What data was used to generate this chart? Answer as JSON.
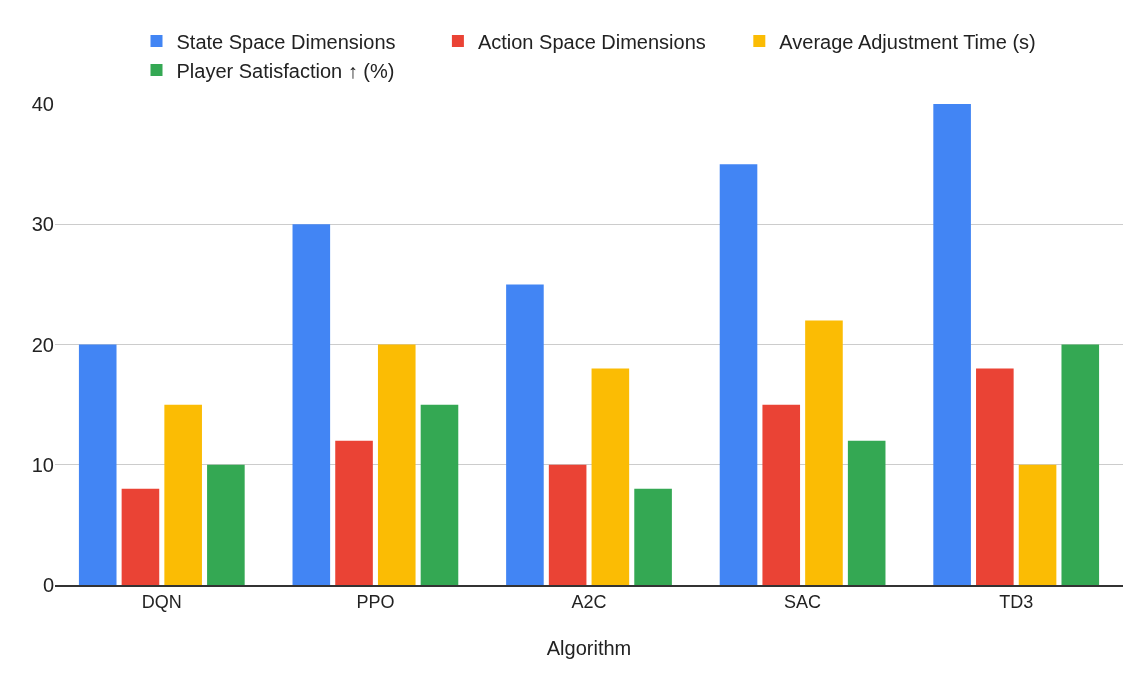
{
  "chart_data": {
    "type": "bar",
    "xlabel": "Algorithm",
    "categories": [
      "DQN",
      "PPO",
      "A2C",
      "SAC",
      "TD3"
    ],
    "series": [
      {
        "name": "State Space Dimensions",
        "color": "#4285f4",
        "values": [
          20,
          30,
          25,
          35,
          40
        ]
      },
      {
        "name": "Action Space Dimensions",
        "color": "#ea4335",
        "values": [
          8,
          12,
          10,
          15,
          18
        ]
      },
      {
        "name": "Average Adjustment Time (s)",
        "color": "#fbbc04",
        "values": [
          15,
          20,
          18,
          22,
          10
        ]
      },
      {
        "name": "Player Satisfaction ↑ (%)",
        "color": "#34a853",
        "values": [
          10,
          15,
          8,
          12,
          20
        ]
      }
    ],
    "ylim": [
      0,
      40
    ],
    "yticks": [
      0,
      10,
      20,
      30,
      40
    ],
    "grid": "y",
    "legend": "top"
  }
}
